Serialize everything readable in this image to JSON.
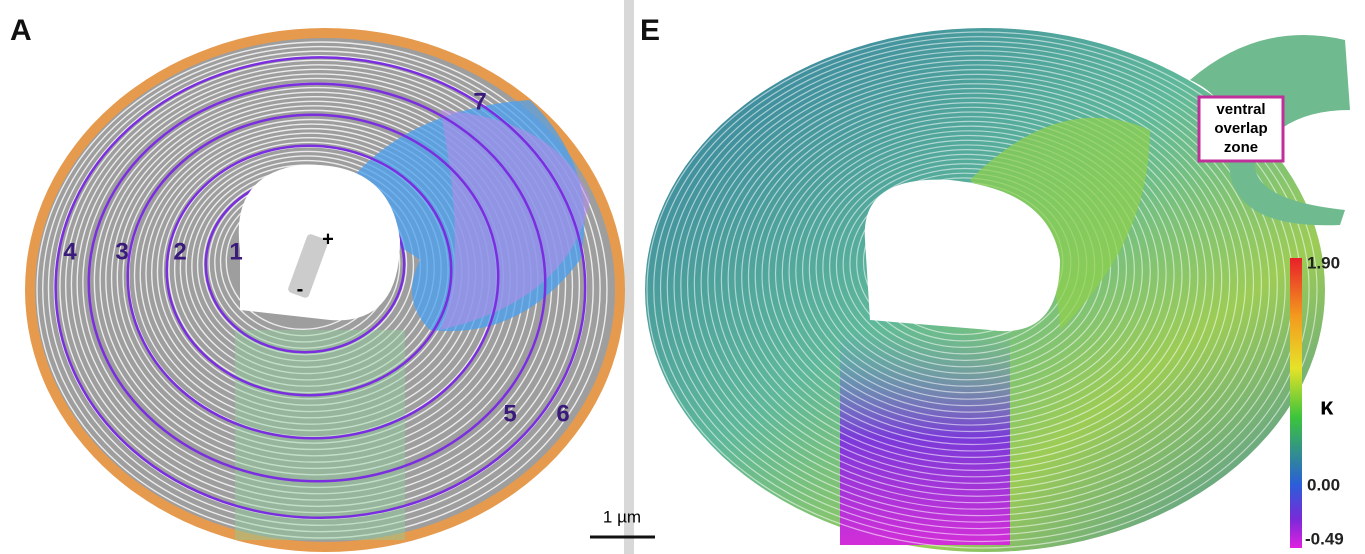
{
  "panels": [
    {
      "label": "A",
      "contour_labels": [
        "1",
        "2",
        "3",
        "4",
        "5",
        "6",
        "7"
      ],
      "direction_signs": [
        "+",
        "-"
      ],
      "scale_bar": "1 µm"
    },
    {
      "label": "E",
      "inset_label": [
        "ventral",
        "overlap",
        "zone"
      ],
      "colorbar": {
        "max": "1.90",
        "symbol": "κ",
        "zero": "0.00",
        "min": "-0.49"
      }
    }
  ]
}
